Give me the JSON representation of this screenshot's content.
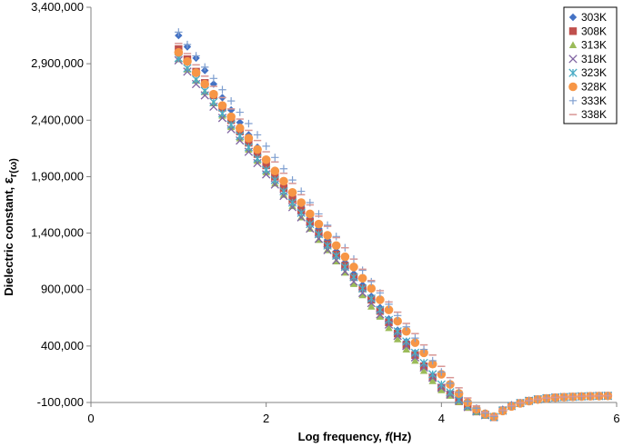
{
  "chart_data": {
    "type": "scatter",
    "xlabel_main": "Log frequency, ",
    "xlabel_italic": "f",
    "xlabel_unit": "(Hz)",
    "ylabel_main": "Dielectric constant, ",
    "ylabel_symbol": "ε",
    "ylabel_sub": "r(ω)",
    "xlim": [
      0,
      6
    ],
    "ylim": [
      -100000,
      3400000
    ],
    "xticks": [
      0,
      2,
      4,
      6
    ],
    "xtick_labels": [
      "0",
      "2",
      "4",
      "6"
    ],
    "yticks": [
      -100000,
      400000,
      900000,
      1400000,
      1900000,
      2400000,
      2900000,
      3400000
    ],
    "ytick_labels": [
      "-100,000",
      "400,000",
      "900,000",
      "1,400,000",
      "1,900,000",
      "2,400,000",
      "2,900,000",
      "3,400,000"
    ],
    "grid": "none",
    "legend_position": "top-right",
    "series": [
      {
        "name": "303K",
        "color": "#4472C4",
        "marker": "diamond",
        "y_start": 3150000,
        "x": [
          1.0,
          1.1,
          1.2,
          1.3,
          1.4,
          1.5,
          1.6,
          1.7,
          1.8,
          1.9,
          2.0,
          2.1,
          2.2,
          2.3,
          2.4,
          2.5,
          2.6,
          2.7,
          2.8,
          2.9,
          3.0,
          3.1,
          3.2,
          3.3,
          3.4,
          3.5,
          3.6,
          3.7,
          3.8,
          3.9,
          4.0,
          4.1,
          4.2,
          4.3,
          4.4,
          4.5,
          4.6,
          4.7,
          4.8,
          4.9,
          5.0,
          5.1,
          5.2,
          5.3,
          5.4,
          5.5,
          5.6,
          5.7,
          5.8,
          5.9
        ],
        "y": [
          3150000,
          3050000,
          2950000,
          2840000,
          2720000,
          2600000,
          2490000,
          2380000,
          2270000,
          2160000,
          2050000,
          1950000,
          1850000,
          1740000,
          1640000,
          1540000,
          1440000,
          1340000,
          1240000,
          1140000,
          1040000,
          940000,
          840000,
          740000,
          640000,
          540000,
          440000,
          340000,
          240000,
          140000,
          40000,
          -20000,
          -80000,
          -130000,
          -180000,
          -210000,
          -230000,
          -160000,
          -120000,
          -100000,
          -80000,
          -70000,
          -60000,
          -55000,
          -50000,
          -48000,
          -45000,
          -43000,
          -42000,
          -40000
        ]
      },
      {
        "name": "308K",
        "color": "#C0504D",
        "marker": "square",
        "y_start": 3030000,
        "x": [
          1.0,
          1.1,
          1.2,
          1.3,
          1.4,
          1.5,
          1.6,
          1.7,
          1.8,
          1.9,
          2.0,
          2.1,
          2.2,
          2.3,
          2.4,
          2.5,
          2.6,
          2.7,
          2.8,
          2.9,
          3.0,
          3.1,
          3.2,
          3.3,
          3.4,
          3.5,
          3.6,
          3.7,
          3.8,
          3.9,
          4.0,
          4.1,
          4.2,
          4.3,
          4.4,
          4.5,
          4.6,
          4.7,
          4.8,
          4.9,
          5.0,
          5.1,
          5.2,
          5.3,
          5.4,
          5.5,
          5.6,
          5.7,
          5.8,
          5.9
        ],
        "y": [
          3030000,
          2940000,
          2830000,
          2730000,
          2620000,
          2510000,
          2400000,
          2300000,
          2200000,
          2100000,
          2000000,
          1900000,
          1800000,
          1700000,
          1600000,
          1500000,
          1400000,
          1300000,
          1210000,
          1110000,
          1010000,
          910000,
          810000,
          710000,
          610000,
          510000,
          410000,
          320000,
          220000,
          120000,
          30000,
          -30000,
          -90000,
          -140000,
          -180000,
          -210000,
          -230000,
          -170000,
          -130000,
          -105000,
          -85000,
          -72000,
          -62000,
          -56000,
          -52000,
          -49000,
          -46000,
          -44000,
          -42000,
          -41000
        ]
      },
      {
        "name": "313K",
        "color": "#9BBB59",
        "marker": "triangle",
        "y_start": 2940000,
        "x": [
          1.0,
          1.1,
          1.2,
          1.3,
          1.4,
          1.5,
          1.6,
          1.7,
          1.8,
          1.9,
          2.0,
          2.1,
          2.2,
          2.3,
          2.4,
          2.5,
          2.6,
          2.7,
          2.8,
          2.9,
          3.0,
          3.1,
          3.2,
          3.3,
          3.4,
          3.5,
          3.6,
          3.7,
          3.8,
          3.9,
          4.0,
          4.1,
          4.2,
          4.3,
          4.4,
          4.5,
          4.6,
          4.7,
          4.8,
          4.9,
          5.0,
          5.1,
          5.2,
          5.3,
          5.4,
          5.5,
          5.6,
          5.7,
          5.8,
          5.9
        ],
        "y": [
          2940000,
          2850000,
          2750000,
          2650000,
          2550000,
          2440000,
          2340000,
          2240000,
          2140000,
          2040000,
          1940000,
          1840000,
          1740000,
          1640000,
          1540000,
          1440000,
          1340000,
          1250000,
          1150000,
          1050000,
          950000,
          850000,
          750000,
          660000,
          560000,
          460000,
          370000,
          270000,
          180000,
          90000,
          10000,
          -40000,
          -95000,
          -145000,
          -185000,
          -215000,
          -232000,
          -175000,
          -135000,
          -108000,
          -88000,
          -74000,
          -64000,
          -57000,
          -53000,
          -50000,
          -47000,
          -45000,
          -43000,
          -42000
        ]
      },
      {
        "name": "318K",
        "color": "#8064A2",
        "marker": "x",
        "y_start": 2930000,
        "x": [
          1.0,
          1.1,
          1.2,
          1.3,
          1.4,
          1.5,
          1.6,
          1.7,
          1.8,
          1.9,
          2.0,
          2.1,
          2.2,
          2.3,
          2.4,
          2.5,
          2.6,
          2.7,
          2.8,
          2.9,
          3.0,
          3.1,
          3.2,
          3.3,
          3.4,
          3.5,
          3.6,
          3.7,
          3.8,
          3.9,
          4.0,
          4.1,
          4.2,
          4.3,
          4.4,
          4.5,
          4.6,
          4.7,
          4.8,
          4.9,
          5.0,
          5.1,
          5.2,
          5.3,
          5.4,
          5.5,
          5.6,
          5.7,
          5.8,
          5.9
        ],
        "y": [
          2930000,
          2830000,
          2720000,
          2620000,
          2520000,
          2420000,
          2320000,
          2220000,
          2120000,
          2020000,
          1920000,
          1830000,
          1730000,
          1630000,
          1540000,
          1440000,
          1350000,
          1250000,
          1160000,
          1060000,
          970000,
          870000,
          780000,
          680000,
          590000,
          490000,
          400000,
          300000,
          210000,
          120000,
          30000,
          -30000,
          -85000,
          -140000,
          -180000,
          -212000,
          -230000,
          -172000,
          -132000,
          -106000,
          -86000,
          -73000,
          -63000,
          -56000,
          -52000,
          -49000,
          -46000,
          -44000,
          -42000,
          -41000
        ]
      },
      {
        "name": "323K",
        "color": "#4BACC6",
        "marker": "star",
        "y_start": 2950000,
        "x": [
          1.0,
          1.1,
          1.2,
          1.3,
          1.4,
          1.5,
          1.6,
          1.7,
          1.8,
          1.9,
          2.0,
          2.1,
          2.2,
          2.3,
          2.4,
          2.5,
          2.6,
          2.7,
          2.8,
          2.9,
          3.0,
          3.1,
          3.2,
          3.3,
          3.4,
          3.5,
          3.6,
          3.7,
          3.8,
          3.9,
          4.0,
          4.1,
          4.2,
          4.3,
          4.4,
          4.5,
          4.6,
          4.7,
          4.8,
          4.9,
          5.0,
          5.1,
          5.2,
          5.3,
          5.4,
          5.5,
          5.6,
          5.7,
          5.8,
          5.9
        ],
        "y": [
          2950000,
          2860000,
          2760000,
          2660000,
          2560000,
          2460000,
          2360000,
          2260000,
          2160000,
          2060000,
          1960000,
          1870000,
          1770000,
          1670000,
          1580000,
          1480000,
          1390000,
          1290000,
          1200000,
          1100000,
          1010000,
          910000,
          820000,
          720000,
          630000,
          530000,
          440000,
          340000,
          250000,
          150000,
          60000,
          -10000,
          -75000,
          -130000,
          -175000,
          -208000,
          -228000,
          -170000,
          -130000,
          -104000,
          -85000,
          -72000,
          -62000,
          -56000,
          -52000,
          -49000,
          -46000,
          -44000,
          -42000,
          -41000
        ]
      },
      {
        "name": "328K",
        "color": "#F79646",
        "marker": "circle",
        "y_start": 3000000,
        "x": [
          1.0,
          1.1,
          1.2,
          1.3,
          1.4,
          1.5,
          1.6,
          1.7,
          1.8,
          1.9,
          2.0,
          2.1,
          2.2,
          2.3,
          2.4,
          2.5,
          2.6,
          2.7,
          2.8,
          2.9,
          3.0,
          3.1,
          3.2,
          3.3,
          3.4,
          3.5,
          3.6,
          3.7,
          3.8,
          3.9,
          4.0,
          4.1,
          4.2,
          4.3,
          4.4,
          4.5,
          4.6,
          4.7,
          4.8,
          4.9,
          5.0,
          5.1,
          5.2,
          5.3,
          5.4,
          5.5,
          5.6,
          5.7,
          5.8,
          5.9
        ],
        "y": [
          3000000,
          2920000,
          2820000,
          2720000,
          2630000,
          2530000,
          2430000,
          2330000,
          2240000,
          2140000,
          2050000,
          1950000,
          1860000,
          1760000,
          1670000,
          1570000,
          1480000,
          1380000,
          1290000,
          1190000,
          1100000,
          1000000,
          910000,
          810000,
          720000,
          620000,
          530000,
          430000,
          340000,
          240000,
          150000,
          60000,
          -20000,
          -100000,
          -160000,
          -200000,
          -225000,
          -175000,
          -135000,
          -108000,
          -88000,
          -74000,
          -64000,
          -57000,
          -53000,
          -50000,
          -47000,
          -45000,
          -43000,
          -42000
        ]
      },
      {
        "name": "333K",
        "color": "#7F9FD0",
        "marker": "plus",
        "y_start": 3180000,
        "x": [
          1.0,
          1.1,
          1.2,
          1.3,
          1.4,
          1.5,
          1.6,
          1.7,
          1.8,
          1.9,
          2.0,
          2.1,
          2.2,
          2.3,
          2.4,
          2.5,
          2.6,
          2.7,
          2.8,
          2.9,
          3.0,
          3.1,
          3.2,
          3.3,
          3.4,
          3.5,
          3.6,
          3.7,
          3.8,
          3.9,
          4.0,
          4.1,
          4.2,
          4.3,
          4.4,
          4.5,
          4.6,
          4.7,
          4.8,
          4.9,
          5.0,
          5.1,
          5.2,
          5.3,
          5.4,
          5.5,
          5.6,
          5.7,
          5.8,
          5.9
        ],
        "y": [
          3180000,
          3070000,
          2970000,
          2870000,
          2770000,
          2670000,
          2570000,
          2470000,
          2370000,
          2270000,
          2170000,
          2070000,
          1970000,
          1870000,
          1770000,
          1670000,
          1570000,
          1470000,
          1370000,
          1270000,
          1170000,
          1070000,
          970000,
          870000,
          770000,
          670000,
          570000,
          470000,
          370000,
          270000,
          170000,
          70000,
          -10000,
          -90000,
          -150000,
          -195000,
          -222000,
          -172000,
          -132000,
          -106000,
          -86000,
          -73000,
          -63000,
          -56000,
          -52000,
          -49000,
          -46000,
          -44000,
          -42000,
          -41000
        ]
      },
      {
        "name": "338K",
        "color": "#D99694",
        "marker": "dash",
        "y_start": 3080000,
        "x": [
          1.0,
          1.1,
          1.2,
          1.3,
          1.4,
          1.5,
          1.6,
          1.7,
          1.8,
          1.9,
          2.0,
          2.1,
          2.2,
          2.3,
          2.4,
          2.5,
          2.6,
          2.7,
          2.8,
          2.9,
          3.0,
          3.1,
          3.2,
          3.3,
          3.4,
          3.5,
          3.6,
          3.7,
          3.8,
          3.9,
          4.0,
          4.1,
          4.2,
          4.3,
          4.4,
          4.5,
          4.6,
          4.7,
          4.8,
          4.9,
          5.0,
          5.1,
          5.2,
          5.3,
          5.4,
          5.5,
          5.6,
          5.7,
          5.8,
          5.9
        ],
        "y": [
          3080000,
          2990000,
          2890000,
          2790000,
          2700000,
          2600000,
          2500000,
          2410000,
          2310000,
          2220000,
          2120000,
          2030000,
          1930000,
          1840000,
          1740000,
          1650000,
          1550000,
          1460000,
          1360000,
          1270000,
          1170000,
          1080000,
          980000,
          890000,
          790000,
          700000,
          600000,
          510000,
          410000,
          320000,
          220000,
          120000,
          30000,
          -60000,
          -130000,
          -185000,
          -215000,
          -168000,
          -128000,
          -102000,
          -83000,
          -71000,
          -61000,
          -55000,
          -51000,
          -48000,
          -45000,
          -43000,
          -41000,
          -40000
        ]
      }
    ]
  }
}
